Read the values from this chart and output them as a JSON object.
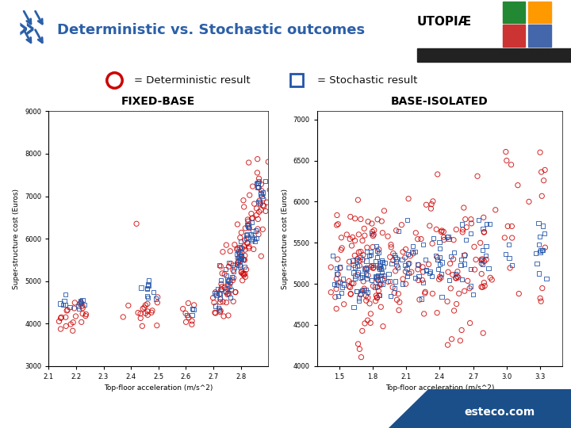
{
  "title": "Deterministic vs. Stochastic outcomes",
  "title_color": "#2B5FA8",
  "legend_circle_label": "= Deterministic result",
  "legend_square_label": "= Stochastic result",
  "circle_color": "#CC0000",
  "square_color": "#2255AA",
  "background_color": "#FFFFFF",
  "header_bg": "#EBEBEB",
  "plot1_title": "FIXED-BASE",
  "plot2_title": "BASE-ISOLATED",
  "plot1_xlabel": "Top-floor acceleration (m/s^2)",
  "plot2_xlabel": "Top-floor acceleration (m/s^2)",
  "plot1_ylabel": "Super-structure cost (Euros)",
  "plot2_ylabel": "Super-structure cost (Euros)",
  "plot1_xlim": [
    2.1,
    2.9
  ],
  "plot1_ylim": [
    3000,
    9000
  ],
  "plot2_xlim": [
    1.3,
    3.5
  ],
  "plot2_ylim": [
    4000,
    7100
  ],
  "plot1_xticks": [
    2.1,
    2.2,
    2.3,
    2.4,
    2.5,
    2.6,
    2.7,
    2.8
  ],
  "plot1_yticks": [
    3000,
    4000,
    5000,
    6000,
    7000,
    8000,
    9000
  ],
  "plot2_xticks": [
    1.5,
    1.8,
    2.1,
    2.4,
    2.7,
    3.0,
    3.3
  ],
  "plot2_yticks": [
    4000,
    4500,
    5000,
    5500,
    6000,
    6500,
    7000
  ],
  "footer_text": "esteco.com",
  "footer_color": "#1B4F8A"
}
